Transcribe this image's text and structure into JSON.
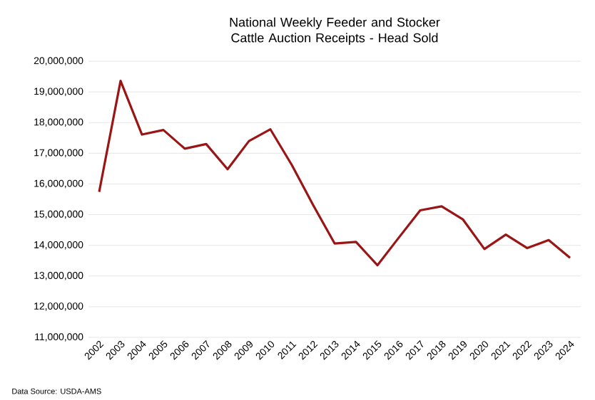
{
  "chart_data": {
    "type": "line",
    "title": "National Weekly Feeder and Stocker Cattle Auction Receipts - Head Sold",
    "categories": [
      "2002",
      "2003",
      "2004",
      "2005",
      "2006",
      "2007",
      "2008",
      "2009",
      "2010",
      "2011",
      "2012",
      "2013",
      "2014",
      "2015",
      "2016",
      "2017",
      "2018",
      "2019",
      "2020",
      "2021",
      "2022",
      "2023",
      "2024"
    ],
    "series": [
      {
        "color": "#9a1515",
        "values": [
          15740000,
          19360000,
          17610000,
          17760000,
          17150000,
          17300000,
          16480000,
          17400000,
          17780000,
          16620000,
          15310000,
          14060000,
          14110000,
          13350000,
          14250000,
          15140000,
          15270000,
          14840000,
          13880000,
          14350000,
          13910000,
          14170000,
          13590000
        ]
      }
    ],
    "ylim": [
      11000000,
      20000000
    ],
    "yticks": [
      {
        "value": 11000000,
        "label": "11,000,000"
      },
      {
        "value": 12000000,
        "label": "12,000,000"
      },
      {
        "value": 13000000,
        "label": "13,000,000"
      },
      {
        "value": 14000000,
        "label": "14,000,000"
      },
      {
        "value": 15000000,
        "label": "15,000,000"
      },
      {
        "value": 16000000,
        "label": "16,000,000"
      },
      {
        "value": 17000000,
        "label": "17,000,000"
      },
      {
        "value": 18000000,
        "label": "18,000,000"
      },
      {
        "value": 19000000,
        "label": "19,000,000"
      },
      {
        "value": 20000000,
        "label": "20,000,000"
      }
    ],
    "grid": "y",
    "marker": "none",
    "line_style": "solid",
    "annotations": [
      "Data Source: USDA-AMS"
    ]
  }
}
